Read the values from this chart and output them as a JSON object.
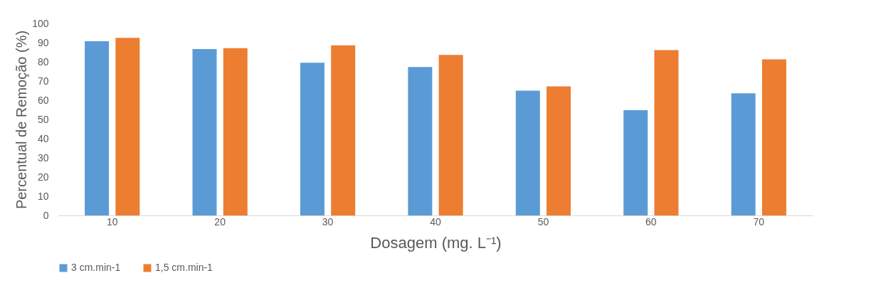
{
  "chart_data": {
    "type": "bar",
    "xlabel": "Dosagem (mg. L⁻¹)",
    "ylabel": "Percentual de Remoção (%)",
    "categories": [
      "10",
      "20",
      "30",
      "40",
      "50",
      "60",
      "70"
    ],
    "series": [
      {
        "name": "3 cm.min-1",
        "color": "#5b9bd5",
        "values": [
          90.7,
          86.7,
          79.5,
          77.3,
          65.0,
          54.8,
          63.6
        ]
      },
      {
        "name": "1,5 cm.min-1",
        "color": "#ed7d31",
        "values": [
          92.5,
          87.1,
          88.6,
          83.6,
          67.2,
          86.1,
          81.3
        ]
      }
    ],
    "ylim": [
      0,
      100
    ],
    "yticks": [
      0,
      10,
      20,
      30,
      40,
      50,
      60,
      70,
      80,
      90,
      100
    ],
    "grid": false,
    "legend": "bottom"
  }
}
